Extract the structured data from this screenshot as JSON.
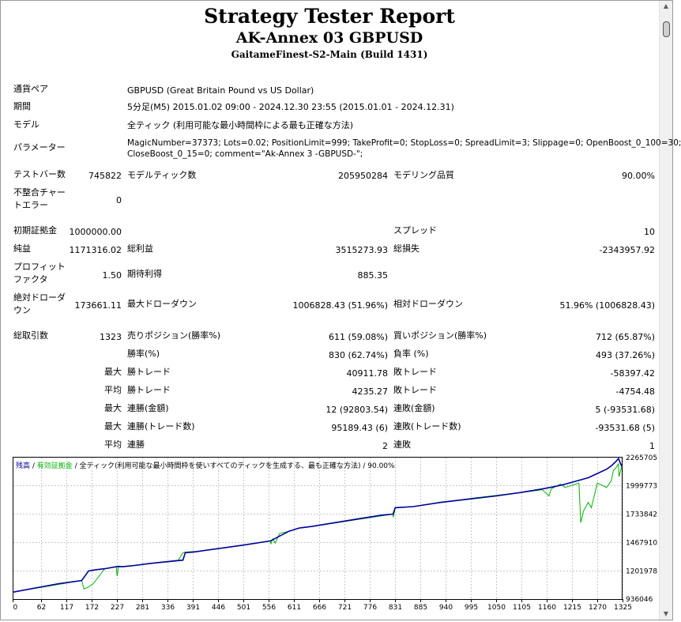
{
  "header": {
    "title": "Strategy Tester Report",
    "subtitle": "AK-Annex 03 GBPUSD",
    "build": "GaitameFinest-S2-Main (Build 1431)"
  },
  "info": {
    "pair_label": "通貨ペア",
    "pair_value": "GBPUSD (Great Britain Pound vs US Dollar)",
    "period_label": "期間",
    "period_value": "5分足(M5) 2015.01.02 09:00 - 2024.12.30 23:55 (2015.01.01 - 2024.12.31)",
    "model_label": "モデル",
    "model_value": "全ティック (利用可能な最小時間枠による最も正確な方法)",
    "params_label": "パラメーター",
    "params_line1": "MagicNumber=37373; Lots=0.02; PositionLimit=999; TakeProfit=0; StopLoss=0; SpreadLimit=3; Slippage=0; OpenBoost_0_100=30;",
    "params_line2": "CloseBoost_0_15=0; comment=\"Ak-Annex 3 -GBPUSD-\";"
  },
  "stats": {
    "bars_label": "テストバー数",
    "bars_value": "745822",
    "ticks_label": "モデルティック数",
    "ticks_value": "205950284",
    "quality_label": "モデリング品質",
    "quality_value": "90.00%",
    "mismatch_label_1": "不整合チャー",
    "mismatch_label_2": "トエラー",
    "mismatch_value": "0",
    "deposit_label": "初期証拠金",
    "deposit_value": "1000000.00",
    "spread_label": "スプレッド",
    "spread_value": "10",
    "net_label": "純益",
    "net_value": "1171316.02",
    "gross_profit_label": "総利益",
    "gross_profit_value": "3515273.93",
    "gross_loss_label": "総損失",
    "gross_loss_value": "-2343957.92",
    "pf_label_1": "プロフィット",
    "pf_label_2": "ファクタ",
    "pf_value": "1.50",
    "expected_label": "期待利得",
    "expected_value": "885.35",
    "abs_dd_label_1": "絶対ドローダ",
    "abs_dd_label_2": "ウン",
    "abs_dd_value": "173661.11",
    "max_dd_label": "最大ドローダウン",
    "max_dd_value": "1006828.43 (51.96%)",
    "rel_dd_label": "相対ドローダウン",
    "rel_dd_value": "51.96% (1006828.43)",
    "trades_label": "総取引数",
    "trades_value": "1323",
    "short_label": "売りポジション(勝率%)",
    "short_value": "611 (59.08%)",
    "long_label": "買いポジション(勝率%)",
    "long_value": "712 (65.87%)",
    "win_pct_label": "勝率(%)",
    "win_pct_value": "830 (62.74%)",
    "loss_pct_label": "負率 (%)",
    "loss_pct_value": "493 (37.26%)",
    "max_word": "最大",
    "avg_word": "平均",
    "largest_win_label": "勝トレード",
    "largest_win_value": "40911.78",
    "largest_loss_label": "敗トレード",
    "largest_loss_value": "-58397.42",
    "avg_win_label": "勝トレード",
    "avg_win_value": "4235.27",
    "avg_loss_label": "敗トレード",
    "avg_loss_value": "-4754.48",
    "cons_wins_money_label": "連勝(金額)",
    "cons_wins_money_value": "12 (92803.54)",
    "cons_losses_money_label": "連敗(金額)",
    "cons_losses_money_value": "5 (-93531.68)",
    "cons_profit_label": "連勝(トレード数)",
    "cons_profit_value": "95189.43 (6)",
    "cons_loss_label": "連敗(トレード数)",
    "cons_loss_value": "-93531.68 (5)",
    "avg_cons_wins_label": "連勝",
    "avg_cons_wins_value": "2",
    "avg_cons_losses_label": "連敗",
    "avg_cons_losses_value": "1"
  },
  "chart_data": {
    "type": "line",
    "legend": {
      "balance": "残高",
      "sep": " / ",
      "equity": "有効証拠金",
      "rest": " / 全ティック(利用可能な最小時間枠を使いすべてのティックを生成する、最も正確な方法) / 90.00%"
    },
    "x_ticks": [
      "0",
      "62",
      "117",
      "172",
      "227",
      "281",
      "336",
      "391",
      "446",
      "501",
      "556",
      "611",
      "666",
      "721",
      "776",
      "831",
      "885",
      "940",
      "995",
      "1050",
      "1105",
      "1160",
      "1215",
      "1270",
      "1325"
    ],
    "y_ticks": [
      "2265705",
      "1999773",
      "1733842",
      "1467910",
      "1201978",
      "936046"
    ],
    "ylim": [
      936046,
      2265705
    ],
    "xlim": [
      0,
      1323
    ],
    "colors": {
      "balance": "#00009b",
      "equity": "#00b400",
      "grid": "#c8c8c8"
    },
    "series": [
      {
        "name": "残高",
        "x": [
          0,
          50,
          100,
          150,
          165,
          180,
          200,
          226,
          240,
          265,
          300,
          370,
          375,
          391,
          400,
          500,
          560,
          600,
          622,
          650,
          700,
          750,
          800,
          826,
          831,
          870,
          930,
          990,
          1050,
          1100,
          1150,
          1180,
          1200,
          1250,
          1270,
          1290,
          1300,
          1310,
          1316,
          1323
        ],
        "y": [
          1000000,
          1040000,
          1080000,
          1110000,
          1200000,
          1210000,
          1220000,
          1240000,
          1240000,
          1250000,
          1270000,
          1300000,
          1370000,
          1375000,
          1380000,
          1440000,
          1480000,
          1570000,
          1600000,
          1615000,
          1650000,
          1685000,
          1720000,
          1730000,
          1790000,
          1800000,
          1840000,
          1870000,
          1900000,
          1930000,
          1965000,
          1990000,
          2010000,
          2070000,
          2110000,
          2150000,
          2180000,
          2220000,
          2250000,
          2175000
        ]
      },
      {
        "name": "有効証拠金",
        "x": [
          0,
          150,
          155,
          165,
          175,
          200,
          225,
          227,
          230,
          240,
          300,
          360,
          370,
          375,
          391,
          400,
          500,
          560,
          561,
          565,
          570,
          580,
          600,
          622,
          650,
          826,
          827,
          831,
          870,
          1000,
          1100,
          1145,
          1150,
          1165,
          1170,
          1175,
          1180,
          1190,
          1200,
          1230,
          1234,
          1240,
          1250,
          1257,
          1270,
          1290,
          1300,
          1305,
          1310,
          1316,
          1317,
          1323
        ],
        "y": [
          1000000,
          1110000,
          1030000,
          1050000,
          1080000,
          1220000,
          1240000,
          1150000,
          1245000,
          1240000,
          1270000,
          1300000,
          1370000,
          1375000,
          1380000,
          1380000,
          1440000,
          1480000,
          1450000,
          1500000,
          1460000,
          1550000,
          1570000,
          1600000,
          1615000,
          1730000,
          1700000,
          1790000,
          1800000,
          1880000,
          1930000,
          1955000,
          1960000,
          1900000,
          1965000,
          1980000,
          1990000,
          2010000,
          1980000,
          2020000,
          1650000,
          1760000,
          1840000,
          1790000,
          2020000,
          1980000,
          2040000,
          2140000,
          2160000,
          2200000,
          2080000,
          2175000
        ]
      }
    ]
  }
}
